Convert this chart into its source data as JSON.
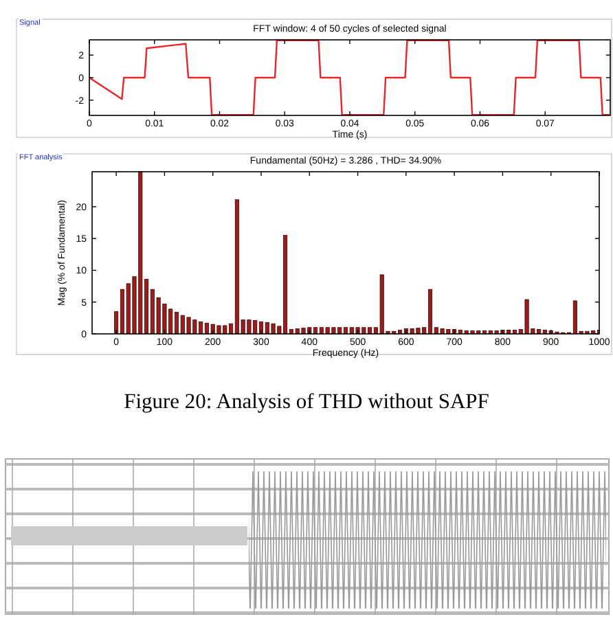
{
  "chart_data": [
    {
      "type": "line",
      "title": "FFT window: 4 of 50 cycles of selected signal",
      "xlabel": "Time (s)",
      "annotations": [
        "Signal"
      ],
      "x": [
        0,
        0.005,
        0.0053,
        0.0085,
        0.0088,
        0.0148,
        0.0152,
        0.0185,
        0.0188,
        0.0252,
        0.0255,
        0.0285,
        0.0288,
        0.0352,
        0.0355,
        0.0385,
        0.0388,
        0.0452,
        0.0455,
        0.0485,
        0.0488,
        0.0552,
        0.0555,
        0.0585,
        0.0588,
        0.0652,
        0.0655,
        0.0685,
        0.0688,
        0.0752,
        0.0755,
        0.0785,
        0.0788,
        0.08
      ],
      "series": [
        {
          "color": "#e8262a",
          "values": [
            0,
            -1.9,
            0,
            0,
            2.6,
            3.0,
            0,
            0,
            -3.3,
            -3.3,
            0,
            0,
            3.3,
            3.3,
            0,
            0,
            -3.3,
            -3.3,
            0,
            0,
            3.3,
            3.3,
            0,
            0,
            -3.3,
            -3.3,
            0,
            0,
            3.3,
            3.3,
            0,
            0,
            -3.3,
            -3.3
          ]
        }
      ],
      "xlim": [
        0,
        0.08
      ],
      "ylim": [
        -3.35,
        3.35
      ],
      "xticks": [
        0,
        0.01,
        0.02,
        0.03,
        0.04,
        0.05,
        0.06,
        0.07
      ],
      "yticks": [
        -2,
        0,
        2
      ],
      "grid": false
    },
    {
      "type": "bar",
      "title": "Fundamental (50Hz) = 3.286 , THD= 34.90%",
      "xlabel": "Frequency (Hz)",
      "ylabel": "Mag (% of Fundamental)",
      "annotations": [
        "FFT analysis",
        "Figure 20: Analysis of THD without SAPF"
      ],
      "x": [
        0,
        12.5,
        25,
        37.5,
        50,
        62.5,
        75,
        87.5,
        100,
        112.5,
        125,
        137.5,
        150,
        162.5,
        175,
        187.5,
        200,
        212.5,
        225,
        237.5,
        250,
        262.5,
        275,
        287.5,
        300,
        312.5,
        325,
        337.5,
        350,
        362.5,
        375,
        387.5,
        400,
        412.5,
        425,
        437.5,
        450,
        462.5,
        475,
        487.5,
        500,
        512.5,
        525,
        537.5,
        550,
        562.5,
        575,
        587.5,
        600,
        612.5,
        625,
        637.5,
        650,
        662.5,
        675,
        687.5,
        700,
        712.5,
        725,
        737.5,
        750,
        762.5,
        775,
        787.5,
        800,
        812.5,
        825,
        837.5,
        850,
        862.5,
        875,
        887.5,
        900,
        912.5,
        925,
        937.5,
        950,
        962.5,
        975,
        987.5,
        1000
      ],
      "series": [
        {
          "color": "#9b1c1c",
          "values": [
            3.5,
            7.0,
            7.9,
            9.0,
            25.5,
            8.6,
            7.0,
            5.7,
            4.7,
            3.9,
            3.4,
            2.9,
            2.6,
            2.2,
            1.9,
            1.7,
            1.5,
            1.3,
            1.3,
            1.6,
            21.1,
            2.2,
            2.2,
            2.1,
            1.9,
            1.8,
            1.6,
            1.2,
            15.5,
            0.7,
            0.8,
            0.9,
            1.0,
            1.0,
            1.0,
            1.0,
            1.0,
            1.0,
            1.0,
            1.0,
            1.0,
            1.0,
            1.0,
            1.0,
            9.3,
            0.4,
            0.4,
            0.6,
            0.8,
            0.8,
            0.9,
            1.0,
            7.0,
            1.0,
            0.8,
            0.7,
            0.7,
            0.6,
            0.5,
            0.5,
            0.5,
            0.5,
            0.5,
            0.5,
            0.6,
            0.6,
            0.6,
            0.7,
            5.4,
            0.8,
            0.7,
            0.6,
            0.5,
            0.3,
            0.2,
            0.2,
            5.2,
            0.4,
            0.4,
            0.5,
            0.6
          ]
        }
      ],
      "xlim": [
        -50,
        1000
      ],
      "ylim": [
        0,
        25.5
      ],
      "xticks": [
        0,
        100,
        200,
        300,
        400,
        500,
        600,
        700,
        800,
        900,
        1000
      ],
      "yticks": [
        0,
        5,
        10,
        15,
        20
      ],
      "grid": false
    }
  ]
}
